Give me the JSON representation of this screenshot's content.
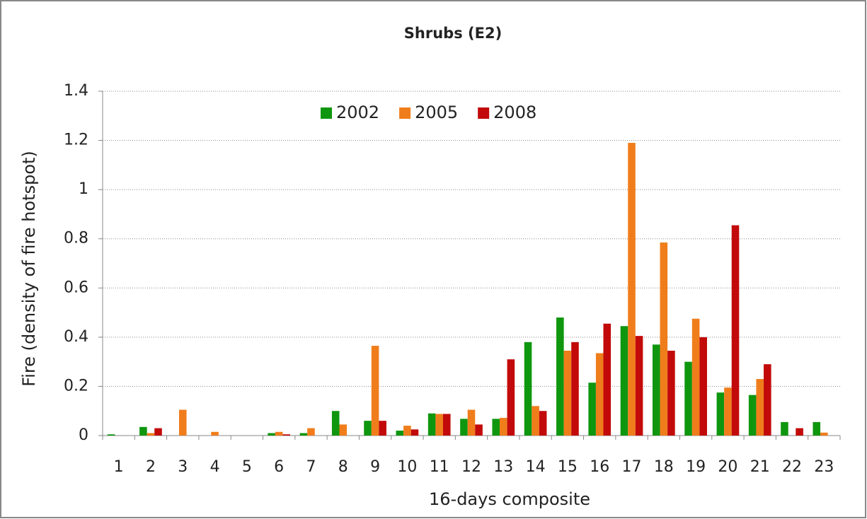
{
  "chart_data": {
    "type": "bar",
    "title": "Shrubs (E2)",
    "x_label": "16-days composite",
    "y_label": "Fire (density of fire hotspot)",
    "categories": [
      "1",
      "2",
      "3",
      "4",
      "5",
      "6",
      "7",
      "8",
      "9",
      "10",
      "11",
      "12",
      "13",
      "14",
      "15",
      "16",
      "17",
      "18",
      "19",
      "20",
      "21",
      "22",
      "23"
    ],
    "series": [
      {
        "name": "2002",
        "color": "#0f960f",
        "values": [
          0.005,
          0.035,
          0,
          0,
          0,
          0.01,
          0.01,
          0.1,
          0.06,
          0.02,
          0.09,
          0.068,
          0.068,
          0.38,
          0.48,
          0.215,
          0.445,
          0.37,
          0.3,
          0.175,
          0.165,
          0.055,
          0.055
        ]
      },
      {
        "name": "2005",
        "color": "#f07d1b",
        "values": [
          0,
          0.01,
          0.105,
          0.015,
          0,
          0.015,
          0.03,
          0.045,
          0.365,
          0.04,
          0.088,
          0.105,
          0.072,
          0.12,
          0.345,
          0.335,
          1.19,
          0.785,
          0.475,
          0.195,
          0.23,
          0,
          0.012
        ]
      },
      {
        "name": "2008",
        "color": "#c20a0a",
        "values": [
          0,
          0.03,
          0,
          0,
          0,
          0.005,
          0,
          0,
          0.06,
          0.025,
          0.088,
          0.045,
          0.31,
          0.1,
          0.38,
          0.455,
          0.405,
          0.345,
          0.4,
          0.855,
          0.29,
          0.03,
          0
        ]
      }
    ],
    "ylim": [
      0,
      1.4
    ],
    "yticks": [
      0,
      0.2,
      0.4,
      0.6,
      0.8,
      1,
      1.2,
      1.4
    ],
    "grid": true,
    "legend": "top"
  }
}
